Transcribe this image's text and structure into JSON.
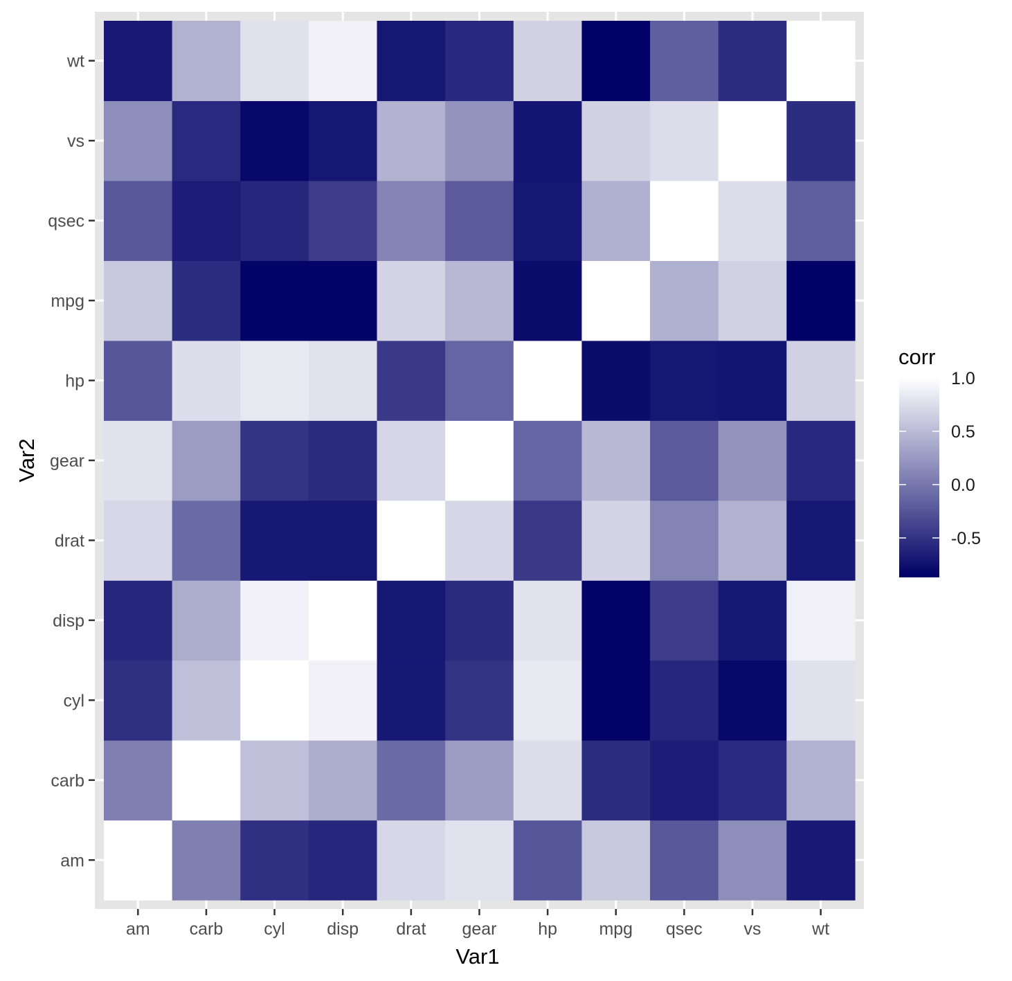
{
  "chart_data": {
    "type": "heatmap",
    "xlabel": "Var1",
    "ylabel": "Var2",
    "x_categories": [
      "am",
      "carb",
      "cyl",
      "disp",
      "drat",
      "gear",
      "hp",
      "mpg",
      "qsec",
      "vs",
      "wt"
    ],
    "y_categories": [
      "am",
      "carb",
      "cyl",
      "disp",
      "drat",
      "gear",
      "hp",
      "mpg",
      "qsec",
      "vs",
      "wt"
    ],
    "variables": [
      "mpg",
      "cyl",
      "disp",
      "hp",
      "drat",
      "wt",
      "qsec",
      "vs",
      "am",
      "gear",
      "carb"
    ],
    "correlation_matrix": [
      [
        1.0,
        -0.85,
        -0.85,
        -0.78,
        0.68,
        -0.87,
        0.42,
        0.66,
        0.6,
        0.48,
        -0.55
      ],
      [
        -0.85,
        1.0,
        0.9,
        0.83,
        -0.7,
        0.78,
        -0.59,
        -0.81,
        -0.52,
        -0.49,
        0.53
      ],
      [
        -0.85,
        0.9,
        1.0,
        0.79,
        -0.71,
        0.89,
        -0.43,
        -0.71,
        -0.59,
        -0.56,
        0.39
      ],
      [
        -0.78,
        0.83,
        0.79,
        1.0,
        -0.45,
        0.66,
        -0.71,
        -0.72,
        -0.24,
        -0.13,
        0.75
      ],
      [
        0.68,
        -0.7,
        -0.71,
        -0.45,
        1.0,
        -0.71,
        0.09,
        0.44,
        0.71,
        0.7,
        -0.09
      ],
      [
        -0.87,
        0.78,
        0.89,
        0.66,
        -0.71,
        1.0,
        -0.17,
        -0.55,
        -0.69,
        -0.58,
        0.43
      ],
      [
        0.42,
        -0.59,
        -0.43,
        -0.71,
        0.09,
        -0.17,
        1.0,
        0.74,
        -0.23,
        -0.21,
        -0.66
      ],
      [
        0.66,
        -0.81,
        -0.71,
        -0.72,
        0.44,
        -0.55,
        0.74,
        1.0,
        0.17,
        0.21,
        -0.57
      ],
      [
        0.6,
        -0.52,
        -0.59,
        -0.24,
        0.71,
        -0.69,
        -0.23,
        0.17,
        1.0,
        0.79,
        0.06
      ],
      [
        0.48,
        -0.49,
        -0.56,
        -0.13,
        0.7,
        -0.58,
        -0.21,
        0.21,
        0.79,
        1.0,
        0.27
      ],
      [
        -0.55,
        0.53,
        0.39,
        0.75,
        -0.09,
        0.43,
        -0.66,
        -0.57,
        0.06,
        0.27,
        1.0
      ]
    ],
    "color_scale": {
      "low_color": "#000066",
      "high_color": "#ffffff",
      "limits": [
        -0.87,
        1.0
      ]
    },
    "legend": {
      "title": "corr",
      "ticks": [
        1.0,
        0.5,
        0.0,
        -0.5
      ],
      "tick_labels": [
        "1.0",
        "0.5",
        "0.0",
        "-0.5"
      ],
      "position": "right"
    },
    "background_color": "#e5e5e5",
    "grid": true
  }
}
